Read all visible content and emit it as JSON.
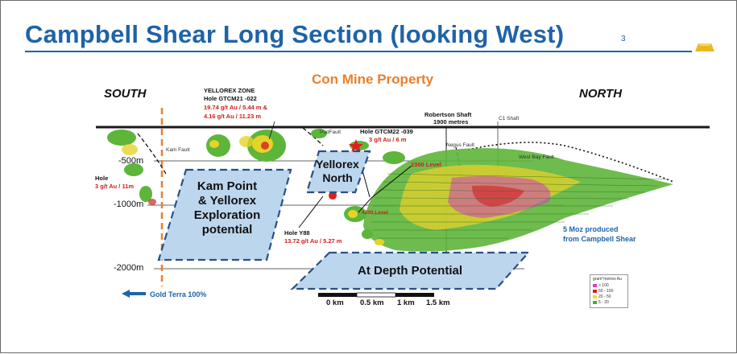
{
  "slide": {
    "title": "Campbell Shear Long Section (looking West)",
    "page_number": "3",
    "property_label": "Con Mine Property"
  },
  "directions": {
    "south": "SOUTH",
    "north": "NORTH"
  },
  "depth_marks": [
    "-500m",
    "-1000m",
    "-2000m"
  ],
  "faults": {
    "kam": "Kam Fault",
    "pud": "PudFault",
    "negus": "Negus Fault",
    "west_bay": "West Bay Fault"
  },
  "shafts": {
    "robertson_name": "Robertson Shaft",
    "robertson_depth": "1900 metres",
    "c1": "C1 Shaft"
  },
  "levels": {
    "l2300": "2300 Level",
    "l4200": "4200 Level"
  },
  "holes": {
    "yellorex_zone_title": "YELLOREX ZONE",
    "yellorex_zone_hole": "Hole GTCM21 -022",
    "yellorex_zone_result1": "19.74 g/t Au / 5.44 m &",
    "yellorex_zone_result2": "4.16 g/t Au / 11.23 m",
    "gtcm22_hole": "Hole GTCM22 -039",
    "gtcm22_result": "3 g/t Au / 6 m",
    "south_hole": "Hole",
    "south_result": "3 g/t Au / 11m",
    "y88_hole": "Hole Y88",
    "y88_result": "13.72 g/t Au / 5.27 m"
  },
  "zones": {
    "kam_point": [
      "Kam Point",
      "& Yellorex",
      "Exploration",
      "potential"
    ],
    "yellorex_north": [
      "Yellorex",
      "North"
    ],
    "at_depth": "At Depth Potential"
  },
  "notes": {
    "produced_line1": "5 Moz produced",
    "produced_line2": "from Campbell Shear",
    "gold_terra": "Gold Terra 100%"
  },
  "scale_bar": [
    "0 km",
    "0.5 km",
    "1 km",
    "1.5 km"
  ],
  "legend": {
    "title": "gram*metres Au",
    "items": [
      {
        "label": "> 100",
        "color": "#e03cc8"
      },
      {
        "label": "50 - 100",
        "color": "#d62020"
      },
      {
        "label": "20 - 50",
        "color": "#f2e21c"
      },
      {
        "label": "5 - 20",
        "color": "#4caf32"
      }
    ]
  },
  "colors": {
    "title_blue": "#1f63a8",
    "property_orange": "#ec7f2a",
    "zone_fill": "#bcd6ee",
    "zone_border": "#2b4f86",
    "ore_green": "#5db53a",
    "ore_yellow": "#e7d22a",
    "ore_red": "#d62020",
    "ore_magenta": "#d13dbf",
    "gold": "#e9b824"
  }
}
